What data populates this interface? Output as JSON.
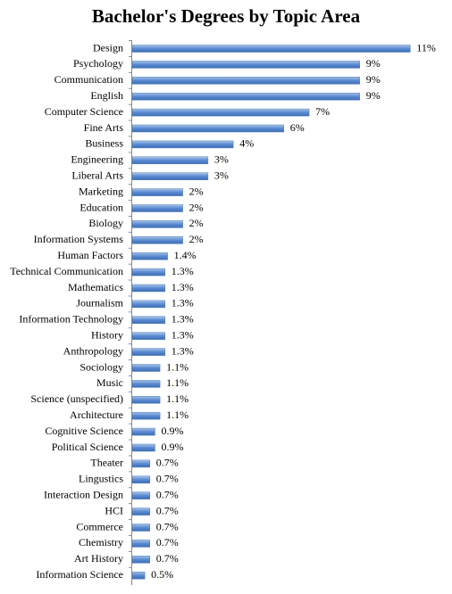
{
  "chart_data": {
    "type": "barh",
    "title": "Bachelor's Degrees by Topic Area",
    "categories": [
      "Design",
      "Psychology",
      "Communication",
      "English",
      "Computer Science",
      "Fine Arts",
      "Business",
      "Engineering",
      "Liberal Arts",
      "Marketing",
      "Education",
      "Biology",
      "Information Systems",
      "Human Factors",
      "Technical Communication",
      "Mathematics",
      "Journalism",
      "Information Technology",
      "History",
      "Anthropology",
      "Sociology",
      "Music",
      "Science (unspecified)",
      "Architecture",
      "Cognitive Science",
      "Political Science",
      "Theater",
      "Lingustics",
      "Interaction Design",
      "HCI",
      "Commerce",
      "Chemistry",
      "Art History",
      "Information Science"
    ],
    "values": [
      11,
      9,
      9,
      9,
      7,
      6,
      4,
      3,
      3,
      2,
      2,
      2,
      2,
      1.4,
      1.3,
      1.3,
      1.3,
      1.3,
      1.3,
      1.3,
      1.1,
      1.1,
      1.1,
      1.1,
      0.9,
      0.9,
      0.7,
      0.7,
      0.7,
      0.7,
      0.7,
      0.7,
      0.7,
      0.5
    ],
    "value_labels": [
      "11%",
      "9%",
      "9%",
      "9%",
      "7%",
      "6%",
      "4%",
      "3%",
      "3%",
      "2%",
      "2%",
      "2%",
      "2%",
      "1.4%",
      "1.3%",
      "1.3%",
      "1.3%",
      "1.3%",
      "1.3%",
      "1.3%",
      "1.1%",
      "1.1%",
      "1.1%",
      "1.1%",
      "0.9%",
      "0.9%",
      "0.7%",
      "0.7%",
      "0.7%",
      "0.7%",
      "0.7%",
      "0.7%",
      "0.7%",
      "0.5%"
    ],
    "color": "#4f81bd"
  }
}
